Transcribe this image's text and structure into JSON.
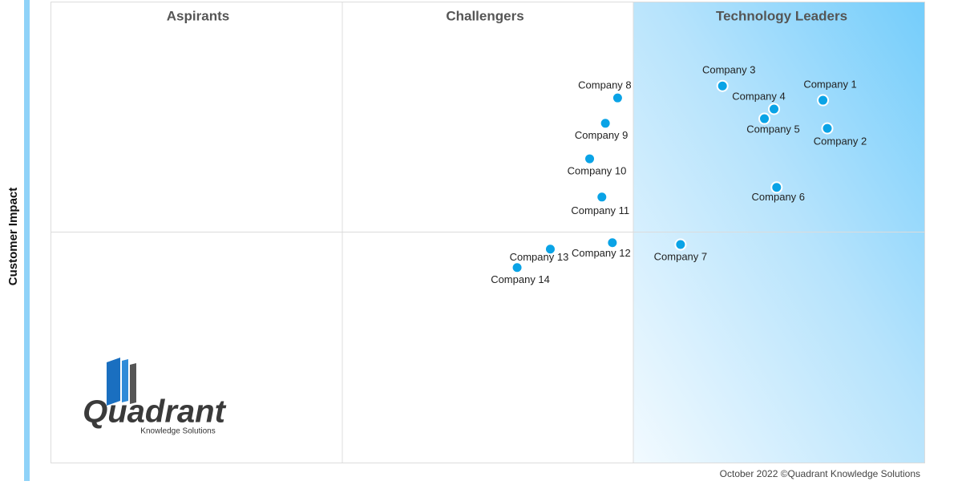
{
  "chart_data": {
    "type": "scatter",
    "y_label": "Customer Impact",
    "quadrants": [
      "Aspirants",
      "Challengers",
      "Technology Leaders"
    ],
    "labels": [
      "Company 1",
      "Company 2",
      "Company 3",
      "Company 4",
      "Company 5",
      "Company 6",
      "Company 7",
      "Company 8",
      "Company 9",
      "Company 10",
      "Company 11",
      "Company 12",
      "Company 13",
      "Company 14"
    ],
    "x": [
      88.4,
      88.9,
      76.9,
      82.8,
      81.7,
      83.1,
      72.1,
      64.9,
      63.5,
      61.7,
      63.1,
      64.3,
      57.2,
      53.4
    ],
    "values": [
      78.6,
      72.5,
      81.7,
      76.7,
      74.6,
      59.7,
      47.3,
      79.1,
      73.6,
      65.9,
      57.6,
      47.7,
      46.3,
      42.3
    ],
    "color": "#0aa3e6",
    "xlim": [
      0,
      100
    ],
    "ylim": [
      0,
      100
    ]
  },
  "footer": "October 2022 ©Quadrant Knowledge Solutions",
  "logo": {
    "name": "Quadrant",
    "tagline": "Knowledge Solutions"
  }
}
